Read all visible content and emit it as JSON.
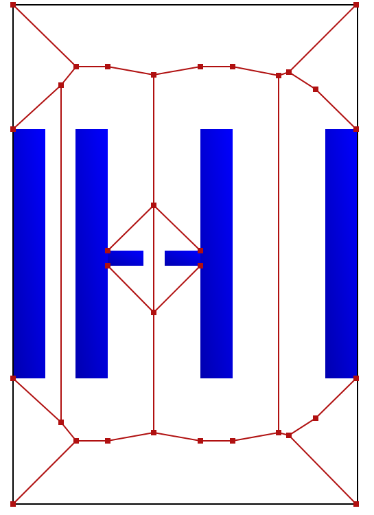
{
  "colors": {
    "background": "#ffffff",
    "frame": "#000000",
    "mesh_edge": "#b01010",
    "mesh_node": "#b01010",
    "conductor_dark": "#0000b0",
    "conductor_light": "#0000ff"
  },
  "diagram": {
    "kind": "mesh-geometry",
    "shapes": [
      "outer-boundary",
      "conductor-strip",
      "conductor-strip",
      "h-shaped-conductor",
      "h-shaped-conductor",
      "conductor-strip"
    ],
    "node_count": 32
  }
}
